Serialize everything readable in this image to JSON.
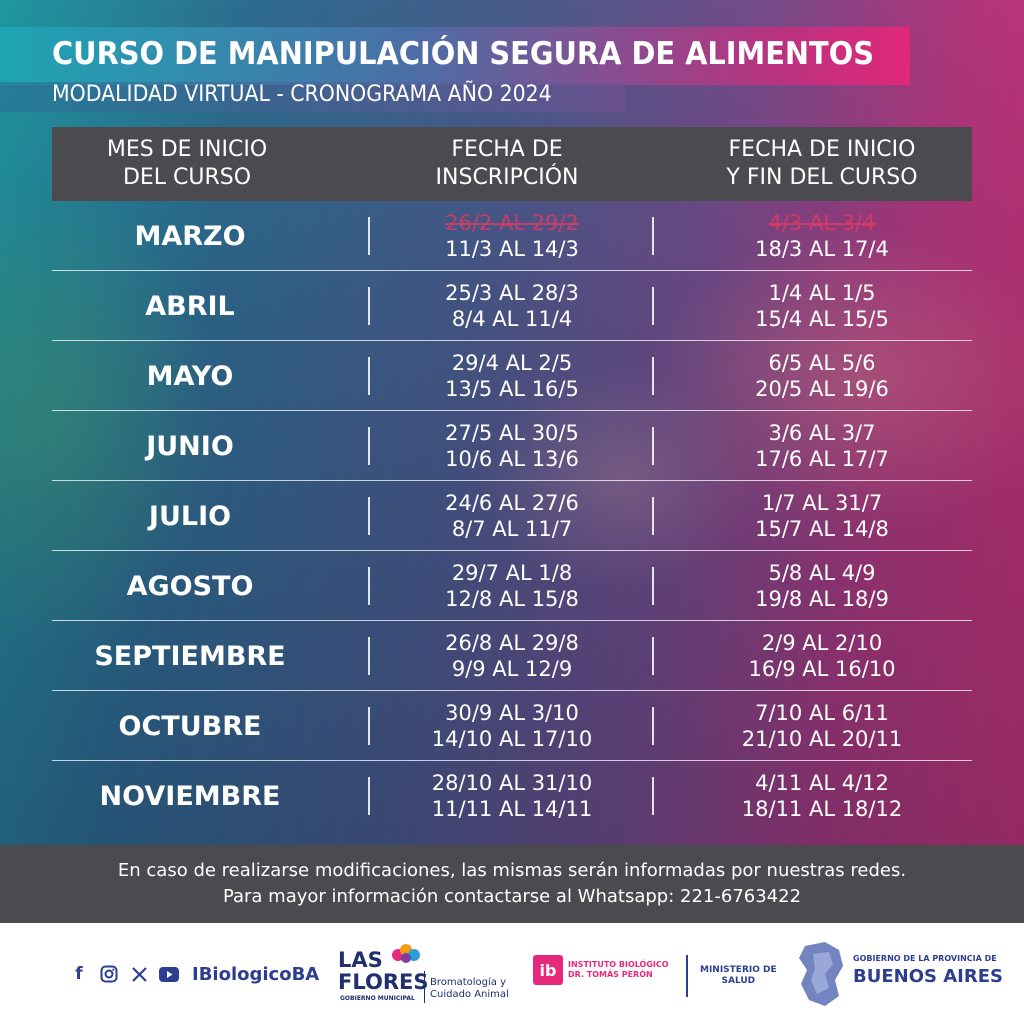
{
  "header": {
    "title": "CURSO DE MANIPULACIÓN SEGURA DE ALIMENTOS",
    "subtitle": "MODALIDAD VIRTUAL - CRONOGRAMA AÑO 2024"
  },
  "table": {
    "columns": [
      "MES DE INICIO\nDEL CURSO",
      "FECHA DE\nINSCRIPCIÓN",
      "FECHA DE INICIO\nY FIN DEL CURSO"
    ],
    "rows": [
      {
        "month": "MARZO",
        "inscripcion": [
          "26/2 AL 29/2",
          "11/3 AL 14/3"
        ],
        "curso": [
          "4/3 AL 3/4",
          "18/3 AL 17/4"
        ]
      },
      {
        "month": "ABRIL",
        "inscripcion": [
          "25/3 AL 28/3",
          "8/4 AL 11/4"
        ],
        "curso": [
          "1/4 AL 1/5",
          "15/4 AL 15/5"
        ]
      },
      {
        "month": "MAYO",
        "inscripcion": [
          "29/4 AL 2/5",
          "13/5 AL 16/5"
        ],
        "curso": [
          "6/5 AL 5/6",
          "20/5 AL 19/6"
        ]
      },
      {
        "month": "JUNIO",
        "inscripcion": [
          "27/5 AL 30/5",
          "10/6 AL 13/6"
        ],
        "curso": [
          "3/6 AL 3/7",
          "17/6 AL 17/7"
        ]
      },
      {
        "month": "JULIO",
        "inscripcion": [
          "24/6 AL 27/6",
          "8/7 AL 11/7"
        ],
        "curso": [
          "1/7 AL 31/7",
          "15/7 AL 14/8"
        ]
      },
      {
        "month": "AGOSTO",
        "inscripcion": [
          "29/7 AL 1/8",
          "12/8 AL 15/8"
        ],
        "curso": [
          "5/8 AL 4/9",
          "19/8 AL 18/9"
        ]
      },
      {
        "month": "SEPTIEMBRE",
        "inscripcion": [
          "26/8 AL 29/8",
          "9/9 AL 12/9"
        ],
        "curso": [
          "2/9 AL 2/10",
          "16/9 AL 16/10"
        ]
      },
      {
        "month": "OCTUBRE",
        "inscripcion": [
          "30/9 AL 3/10",
          "14/10 AL 17/10"
        ],
        "curso": [
          "7/10 AL 6/11",
          "21/10 AL 20/11"
        ]
      },
      {
        "month": "NOVIEMBRE",
        "inscripcion": [
          "28/10 AL 31/10",
          "11/11 AL 14/11"
        ],
        "curso": [
          "4/11 AL 4/12",
          "18/11 AL 18/12"
        ]
      }
    ]
  },
  "footer": {
    "line1": "En caso de realizarse modificaciones, las mismas serán informadas por nuestras redes.",
    "line2": "Para mayor información contactarse al Whatsapp: 221-6763422"
  },
  "logos": {
    "social_icons": [
      "facebook-icon",
      "instagram-icon",
      "x-icon",
      "youtube-icon"
    ],
    "handle": "IBiologicoBA",
    "las_flores": {
      "name_line1": "LAS",
      "name_line2": "FLORES",
      "gobierno": "GOBIERNO MUNICIPAL",
      "sub1": "Bromatología y",
      "sub2": "Cuidado Animal"
    },
    "instituto": {
      "mark": "ib",
      "line1": "INSTITUTO BIOLÓGICO",
      "line2": "DR. TOMÁS PERÓN"
    },
    "ministerio": {
      "line1": "MINISTERIO DE",
      "line2": "SALUD"
    },
    "provincia": {
      "line1": "GOBIERNO DE LA PROVINCIA DE",
      "line2": "BUENOS AIRES"
    }
  },
  "colors": {
    "accent_pink": "#e6297b",
    "accent_teal": "#1ea5b3",
    "dark_band": "#4b4b4f",
    "brand_blue": "#2c3e8f"
  }
}
